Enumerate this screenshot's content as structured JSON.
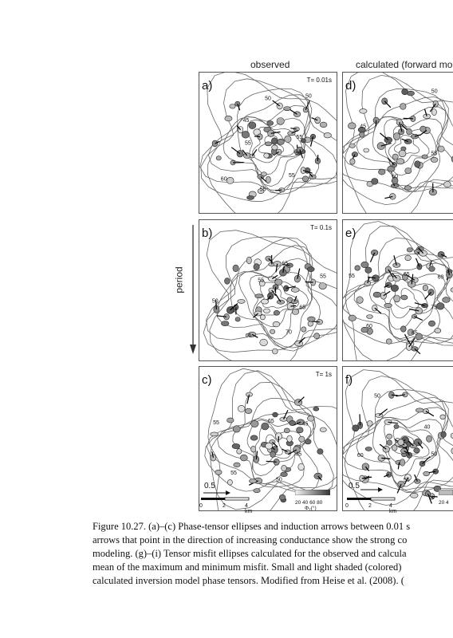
{
  "headers": {
    "observed": "observed",
    "calculated": "calculated (forward mo"
  },
  "panels": [
    {
      "id": "a",
      "label": "a)",
      "period": "T= 0.01s"
    },
    {
      "id": "d",
      "label": "d)",
      "period": "T"
    },
    {
      "id": "b",
      "label": "b)",
      "period": "T= 0.1s"
    },
    {
      "id": "e",
      "label": "e)",
      "period": "T"
    },
    {
      "id": "c",
      "label": "c)",
      "period": "T= 1s"
    },
    {
      "id": "f",
      "label": "f)",
      "period": ""
    }
  ],
  "axis": {
    "period_label": "period"
  },
  "contours": {
    "a": [
      "50",
      "55",
      "55",
      "60",
      "55",
      "45",
      "50",
      "50",
      "55"
    ],
    "d": [
      "55",
      "60",
      "45",
      "50"
    ],
    "b": [
      "65",
      "70",
      "65",
      "50",
      "55",
      "65",
      "55"
    ],
    "e": [
      "75",
      "65",
      "60",
      "55",
      "65",
      "60"
    ],
    "c": [
      "45",
      "50",
      "55",
      "55",
      "65",
      "45"
    ],
    "f": [
      "50",
      "55",
      "60",
      "50",
      "40"
    ]
  },
  "scale": {
    "arrow_left": "0.5",
    "arrow_right": "0.5",
    "km_ticks_left": [
      "0",
      "2",
      "4 km"
    ],
    "km_ticks_right": [
      "0",
      "2",
      "4 km"
    ],
    "colorbar_ticks_left": "20 40 60 80",
    "colorbar_label_left": "Φ₂(°)",
    "colorbar_ticks_right": "20 4"
  },
  "caption": {
    "lines": [
      "Figure 10.27.  (a)–(c) Phase-tensor ellipses and induction arrows between 0.01 s",
      "arrows that point in the direction of increasing conductance show the strong co",
      "modeling. (g)–(i) Tensor misfit ellipses calculated for the observed and calcula",
      "mean of the maximum and minimum misfit. Small and light shaded (colored)",
      "calculated inversion model phase tensors. Modified from Heise et al. (2008). ("
    ]
  }
}
